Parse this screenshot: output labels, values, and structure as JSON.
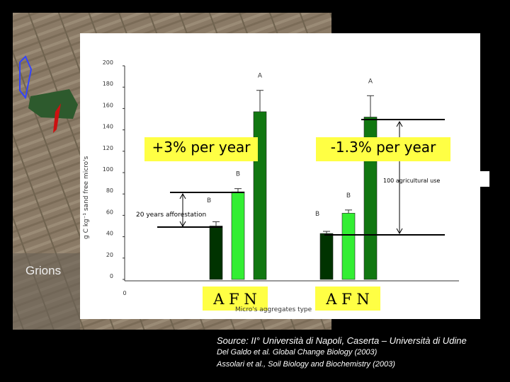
{
  "photo": {
    "place_label": "Grions"
  },
  "chart_data": {
    "type": "bar",
    "ylabel": "g C kg⁻¹ sand free micro's",
    "xlabel": "Micro's aggregates type",
    "yticks": [
      "200",
      "180",
      "160",
      "140",
      "120",
      "100",
      "80",
      "60",
      "40",
      "20",
      "0"
    ],
    "ylim": [
      0,
      200
    ],
    "x_origin_label": "0",
    "groups": [
      {
        "name": "20 years afforestation",
        "categories": [
          "A",
          "F",
          "N"
        ],
        "values": [
          50,
          82,
          157
        ],
        "errors": [
          4,
          3,
          20
        ],
        "letters": [
          "",
          "B",
          "A"
        ]
      },
      {
        "name": "100 agricultural use",
        "categories": [
          "A",
          "F",
          "N"
        ],
        "values": [
          43,
          62,
          152
        ],
        "errors": [
          2,
          3,
          20
        ],
        "letters": [
          "",
          "B",
          "A"
        ]
      }
    ],
    "extra_letters": [
      "B",
      "B"
    ],
    "colors": [
      "#003300",
      "#33ee33",
      "#117711"
    ],
    "callouts": [
      {
        "text": "+3% per year",
        "color": "#ffff44"
      },
      {
        "text": "-1.3% per year",
        "color": "#ffff44"
      }
    ],
    "annotations": [
      "20 years afforestation",
      "100 agricultural use"
    ],
    "category_labels": [
      "A  F  N",
      "A  F  N"
    ]
  },
  "footer": {
    "source": "Source: II° Università di Napoli, Caserta – Università di Udine",
    "ref1": "Del Galdo et al. Global Change Biology (2003)",
    "ref2": "Assolari et al., Soil Biology and Biochemistry (2003)"
  }
}
